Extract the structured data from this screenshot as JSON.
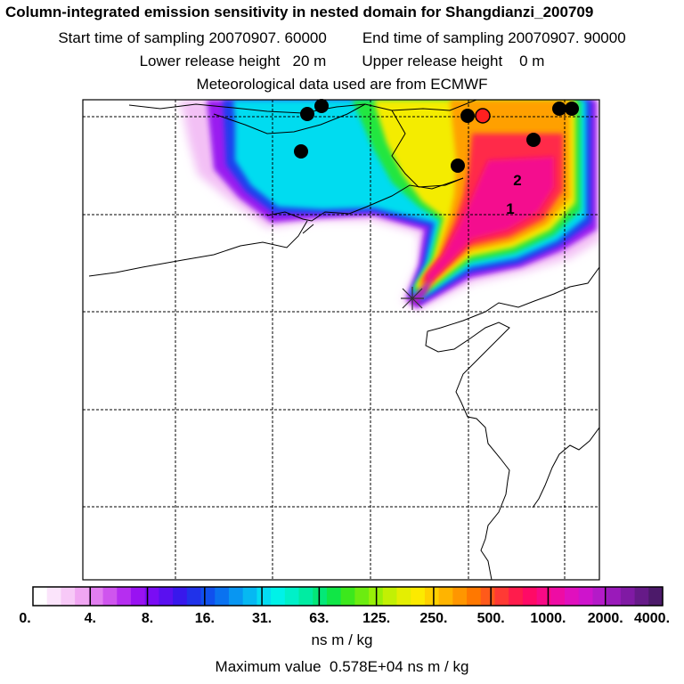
{
  "header": {
    "title": "Column-integrated emission sensitivity in nested domain for Shangdianzi_200709",
    "start_label": "Start time of sampling 20070907. 60000",
    "end_label": "End time of sampling 20070907. 90000",
    "lower_label": "Lower release height   20 m",
    "upper_label": "Upper release height    0 m",
    "met_label": "Meteorological data used are from ECMWF"
  },
  "chart_data": {
    "type": "heatmap",
    "title": "Column-integrated emission sensitivity in nested domain for Shangdianzi_200709",
    "units": "ns m / kg",
    "max_value_text": "Maximum value  0.578E+04 ns m / kg",
    "colorbar": {
      "tick_labels": [
        "0.",
        "4.",
        "8.",
        "16.",
        "31.",
        "63.",
        "125.",
        "250.",
        "500.",
        "1000.",
        "2000.",
        "4000."
      ],
      "colors": [
        "#ffffff",
        "#fbe4fb",
        "#f7c9f7",
        "#f0a6f2",
        "#e27ef0",
        "#cf55ee",
        "#b62ef0",
        "#9912f2",
        "#7a0cf4",
        "#5a10f0",
        "#3818ec",
        "#2032ea",
        "#1050ee",
        "#0a72f0",
        "#0896f2",
        "#06b8f2",
        "#04dcf2",
        "#00f2e8",
        "#00f0c8",
        "#00eca2",
        "#04e878",
        "#10e646",
        "#3ce81c",
        "#6cec10",
        "#98f008",
        "#c2f004",
        "#e4ee02",
        "#fcea00",
        "#ffd000",
        "#ffb400",
        "#ff9600",
        "#ff7800",
        "#ff5a1a",
        "#ff3a34",
        "#ff1c4c",
        "#ff0a66",
        "#f80a86",
        "#ee0ca4",
        "#e010be",
        "#ce14cc",
        "#b41ac8",
        "#9a1aba",
        "#801aa4",
        "#661a88",
        "#4c1a6a"
      ]
    },
    "receptor_labels": [
      "1",
      "2"
    ],
    "series": [
      {
        "name": "receptor 1",
        "label": "1"
      },
      {
        "name": "receptor 2",
        "label": "2"
      }
    ],
    "grid": true
  }
}
